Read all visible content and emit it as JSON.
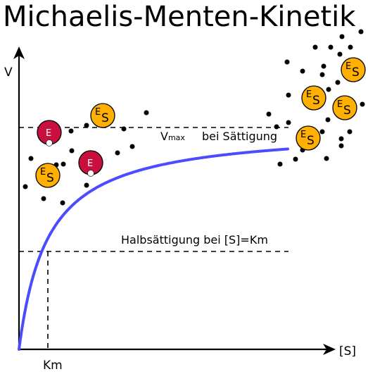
{
  "title": "Michaelis-Menten-Kinetik",
  "axes": {
    "y_label": "V",
    "x_label": "[S]",
    "km_label": "Km"
  },
  "annotations": {
    "vmax_main": "V",
    "vmax_sub": "max",
    "vmax_rest": "bei Sättigung",
    "half_saturation": "Halbsättigung bei [S]=Km"
  },
  "molecules": {
    "enzyme_letter": "E",
    "substrate_letter": "S"
  },
  "colors": {
    "curve": "#4b4bff",
    "enzyme_fill": "#c8103e",
    "complex_fill": "#ffb000",
    "line": "#000000"
  }
}
